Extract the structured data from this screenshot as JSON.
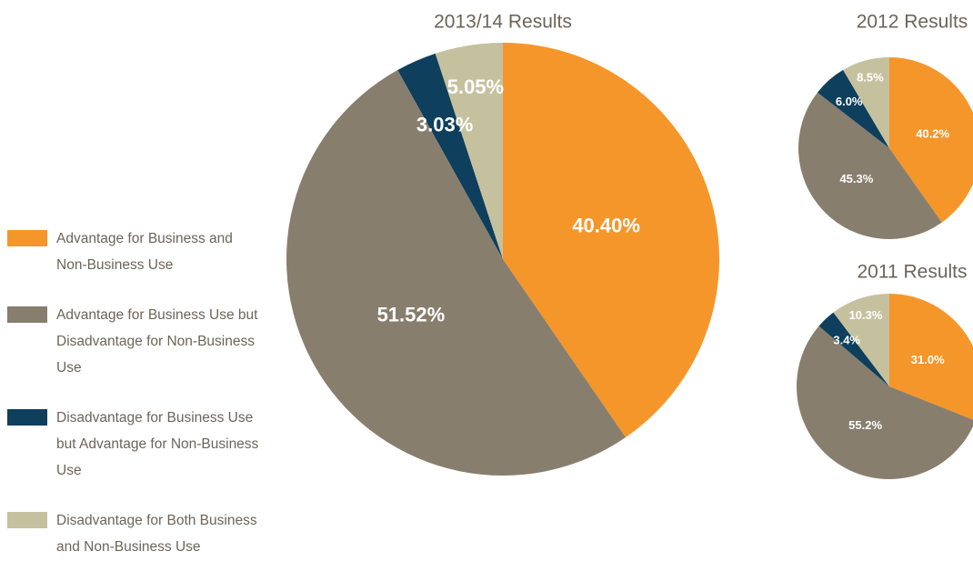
{
  "chart_data": [
    {
      "type": "pie",
      "title": "2013/14 Results",
      "categories": [
        "Advantage for Business and Non-Business Use",
        "Advantage for Business Use but Disadvantage for Non-Business Use",
        "Disadvantage for Business Use but Advantage for Non-Business Use",
        "Disadvantage for Both Business and Non-Business Use"
      ],
      "colors": [
        "#f5962a",
        "#887e6e",
        "#0e3f5c",
        "#c5c19f"
      ],
      "values": [
        40.4,
        51.52,
        3.03,
        5.05
      ],
      "value_labels": [
        "40.40%",
        "51.52%",
        "3.03%",
        "5.05%"
      ]
    },
    {
      "type": "pie",
      "title": "2012 Results",
      "values": [
        40.2,
        45.3,
        6.0,
        8.5
      ],
      "value_labels": [
        "40.2%",
        "45.3%",
        "6.0%",
        "8.5%"
      ]
    },
    {
      "type": "pie",
      "title": "2011 Results",
      "values": [
        31.0,
        55.2,
        3.4,
        10.3
      ],
      "value_labels": [
        "31.0%",
        "55.2%",
        "3.4%",
        "10.3%"
      ]
    }
  ]
}
